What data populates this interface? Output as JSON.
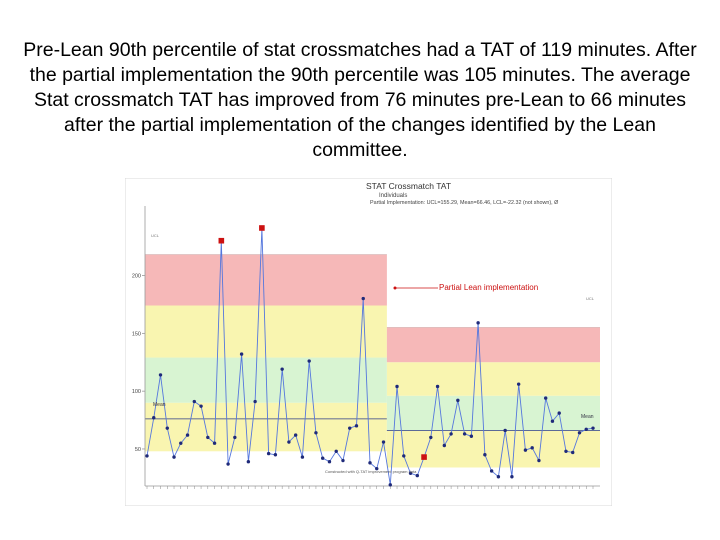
{
  "caption": "Pre-Lean 90th percentile of stat crossmatches had a TAT of 119 minutes. After the partial implementation the 90th percentile was 105 minutes. The average Stat crossmatch TAT has improved from 76 minutes pre-Lean to 66 minutes after the partial implementation of the changes identified by the Lean committee.",
  "chart_data": {
    "type": "line",
    "title": "STAT Crossmatch TAT",
    "subtitle": "Individuals",
    "stats_line": "Partial Implementation: UCL=155.29, Mean=66.46, LCL=-22.32 (not shown), Ø",
    "annotation": "Partial Lean implementation",
    "footnote": "Constructed with Q‑TAT improvement program data",
    "ylim": [
      18,
      260
    ],
    "yticks": [
      50,
      100,
      150,
      200
    ],
    "mean_label": "Mean",
    "ucl_label": "UCL",
    "phase_break_index": 36,
    "phases": [
      {
        "name": "Pre-Lean",
        "ucl": 218,
        "mean": 76,
        "zone_edges": [
          48,
          90,
          129,
          174,
          218
        ]
      },
      {
        "name": "Partial Implementation",
        "ucl": 155,
        "mean": 66,
        "zone_edges": [
          34,
          66,
          96,
          125,
          155
        ]
      }
    ],
    "values": [
      44,
      77,
      114,
      68,
      43,
      55,
      62,
      91,
      87,
      60,
      55,
      230,
      37,
      60,
      132,
      39,
      91,
      241,
      46,
      45,
      119,
      56,
      62,
      43,
      126,
      64,
      42,
      39,
      48,
      40,
      68,
      70,
      180,
      38,
      33,
      56,
      19,
      104,
      44,
      29,
      27,
      43,
      60,
      104,
      53,
      63,
      92,
      63,
      61,
      159,
      45,
      31,
      26,
      66,
      26,
      106,
      49,
      51,
      40,
      94,
      74,
      81,
      48,
      47,
      64,
      67,
      68
    ],
    "flagged_indices": [
      11,
      17,
      41
    ],
    "x_tick_count": 67
  },
  "colors": {
    "zone_red": "#f6b8b8",
    "zone_yellow": "#f9f5b0",
    "zone_green": "#d8f4d2",
    "series_line": "#5577dd",
    "point": "#1f2a7a",
    "flagged_point": "#cc1111",
    "annotation": "#cc1111"
  }
}
